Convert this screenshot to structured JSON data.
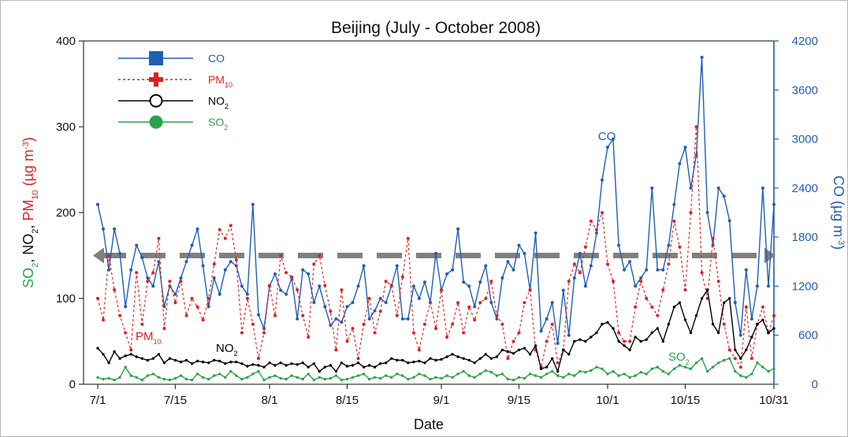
{
  "chart_data": {
    "type": "line",
    "title": "Beijing (July - October 2008)",
    "xlabel": "Date",
    "ylabel_left": [
      "SO",
      "2",
      ", ",
      "NO",
      "2",
      ", ",
      "PM",
      "10",
      " (µg m",
      "-3",
      ")"
    ],
    "ylabel_right": [
      "CO (µg m",
      "-3",
      ")"
    ],
    "x_ticks": [
      "7/1",
      "7/15",
      "8/1",
      "8/15",
      "9/1",
      "9/15",
      "10/1",
      "10/15",
      "10/31"
    ],
    "x_tick_days": [
      1,
      15,
      32,
      46,
      63,
      77,
      93,
      107,
      123
    ],
    "x_range_days": [
      1,
      123
    ],
    "y_left_ticks": [
      "0",
      "100",
      "200",
      "300",
      "400"
    ],
    "y_left_range": [
      0,
      400
    ],
    "y_right_ticks": [
      "0",
      "600",
      "1200",
      "1800",
      "2400",
      "3000",
      "3600",
      "4200"
    ],
    "y_right_range": [
      0,
      4200
    ],
    "reference_line": {
      "axis": "left",
      "value": 150,
      "style": "dashed",
      "color": "#808080"
    },
    "grid": false,
    "legend": {
      "position": "top-left",
      "entries": [
        {
          "label": "CO",
          "sub": "",
          "color": "#1f5fb4",
          "marker": "square",
          "dash": ""
        },
        {
          "label": "PM",
          "sub": "10",
          "color": "#e02020",
          "marker": "plus",
          "dash": "3,3"
        },
        {
          "label": "NO",
          "sub": "2",
          "color": "#000000",
          "marker": "open-circle",
          "dash": ""
        },
        {
          "label": "SO",
          "sub": "2",
          "color": "#2aa34a",
          "marker": "circle",
          "dash": ""
        }
      ]
    },
    "annotations": [
      {
        "text": "CO",
        "sub": "",
        "color": "#1f5fb4"
      },
      {
        "text": "PM",
        "sub": "10",
        "color": "#e02020"
      },
      {
        "text": "NO",
        "sub": "2",
        "color": "#000000"
      },
      {
        "text": "SO",
        "sub": "2",
        "color": "#2aa34a"
      }
    ],
    "series": [
      {
        "name": "CO",
        "axis": "right",
        "color": "#1f5fb4",
        "dash": "",
        "marker_r": 2.0,
        "x": [
          1,
          2,
          3,
          4,
          5,
          6,
          7,
          8,
          9,
          10,
          11,
          12,
          13,
          14,
          15,
          16,
          17,
          18,
          19,
          20,
          21,
          22,
          23,
          24,
          25,
          26,
          27,
          28,
          29,
          30,
          31,
          32,
          33,
          34,
          35,
          36,
          37,
          38,
          39,
          40,
          41,
          42,
          43,
          44,
          45,
          46,
          47,
          48,
          49,
          50,
          51,
          52,
          53,
          54,
          55,
          56,
          57,
          58,
          59,
          60,
          61,
          62,
          63,
          64,
          65,
          66,
          67,
          68,
          69,
          70,
          71,
          72,
          73,
          74,
          75,
          76,
          77,
          78,
          79,
          80,
          81,
          82,
          83,
          84,
          85,
          86,
          87,
          88,
          89,
          90,
          91,
          92,
          93,
          94,
          95,
          96,
          97,
          98,
          99,
          100,
          101,
          102,
          103,
          104,
          105,
          106,
          107,
          108,
          109,
          110,
          111,
          112,
          113,
          114,
          115,
          116,
          117,
          118,
          119,
          120,
          121,
          122,
          123
        ],
        "y": [
          2200,
          1900,
          1400,
          1900,
          1600,
          950,
          1400,
          1700,
          1550,
          1300,
          1200,
          1500,
          950,
          1200,
          1100,
          1300,
          1500,
          1700,
          1900,
          1450,
          950,
          1300,
          1100,
          1400,
          1500,
          1450,
          1200,
          1100,
          2200,
          850,
          680,
          1200,
          1350,
          1150,
          1100,
          1300,
          800,
          1400,
          1350,
          1000,
          1200,
          950,
          720,
          800,
          760,
          950,
          1000,
          1200,
          1450,
          800,
          900,
          1050,
          1000,
          1200,
          1450,
          800,
          800,
          1200,
          1050,
          1250,
          1000,
          1600,
          1150,
          1350,
          1400,
          1900,
          1250,
          1200,
          950,
          1250,
          1450,
          1000,
          800,
          1300,
          1500,
          1400,
          1700,
          1600,
          1150,
          1850,
          650,
          800,
          1000,
          500,
          1150,
          600,
          1300,
          1600,
          1200,
          1450,
          1850,
          2500,
          2900,
          3000,
          1700,
          1400,
          1500,
          1200,
          1300,
          1400,
          2400,
          1400,
          1400,
          1700,
          2200,
          2700,
          2900,
          2400,
          2800,
          4000,
          2100,
          1700,
          2400,
          2300,
          2000,
          1000,
          600,
          1400,
          800,
          1200,
          2400,
          1200,
          2200
        ]
      },
      {
        "name": "PM10",
        "axis": "left",
        "color": "#e02020",
        "dash": "3,3",
        "marker_r": 2.0,
        "x": [
          1,
          2,
          3,
          4,
          5,
          6,
          7,
          8,
          9,
          10,
          11,
          12,
          13,
          14,
          15,
          16,
          17,
          18,
          19,
          20,
          21,
          22,
          23,
          24,
          25,
          26,
          27,
          28,
          29,
          30,
          31,
          32,
          33,
          34,
          35,
          36,
          37,
          38,
          39,
          40,
          41,
          42,
          43,
          44,
          45,
          46,
          47,
          48,
          49,
          50,
          51,
          52,
          53,
          54,
          55,
          56,
          57,
          58,
          59,
          60,
          61,
          62,
          63,
          64,
          65,
          66,
          67,
          68,
          69,
          70,
          71,
          72,
          73,
          74,
          75,
          76,
          77,
          78,
          79,
          80,
          81,
          82,
          83,
          84,
          85,
          86,
          87,
          88,
          89,
          90,
          91,
          92,
          93,
          94,
          95,
          96,
          97,
          98,
          99,
          100,
          101,
          102,
          103,
          104,
          105,
          106,
          107,
          108,
          109,
          110,
          111,
          112,
          113,
          114,
          115,
          116,
          117,
          118,
          119,
          120,
          121,
          122,
          123
        ],
        "y": [
          100,
          75,
          150,
          110,
          80,
          60,
          40,
          130,
          70,
          120,
          130,
          170,
          65,
          120,
          95,
          120,
          80,
          100,
          90,
          75,
          100,
          140,
          180,
          170,
          185,
          145,
          60,
          100,
          70,
          30,
          60,
          115,
          80,
          150,
          130,
          125,
          110,
          80,
          55,
          140,
          150,
          115,
          85,
          40,
          110,
          50,
          65,
          30,
          70,
          100,
          60,
          85,
          120,
          115,
          80,
          125,
          170,
          60,
          40,
          70,
          95,
          65,
          110,
          55,
          70,
          95,
          60,
          90,
          75,
          95,
          100,
          120,
          80,
          70,
          30,
          50,
          60,
          95,
          110,
          40,
          20,
          50,
          70,
          25,
          40,
          120,
          140,
          130,
          160,
          190,
          180,
          200,
          140,
          120,
          60,
          50,
          50,
          90,
          120,
          100,
          90,
          80,
          110,
          140,
          190,
          160,
          110,
          200,
          300,
          130,
          100,
          170,
          120,
          70,
          40,
          30,
          20,
          90,
          30,
          70,
          90,
          60,
          80
        ]
      },
      {
        "name": "NO2",
        "axis": "left",
        "color": "#000000",
        "dash": "",
        "marker_r": 1.7,
        "x": [
          1,
          2,
          3,
          4,
          5,
          6,
          7,
          8,
          9,
          10,
          11,
          12,
          13,
          14,
          15,
          16,
          17,
          18,
          19,
          20,
          21,
          22,
          23,
          24,
          25,
          26,
          27,
          28,
          29,
          30,
          31,
          32,
          33,
          34,
          35,
          36,
          37,
          38,
          39,
          40,
          41,
          42,
          43,
          44,
          45,
          46,
          47,
          48,
          49,
          50,
          51,
          52,
          53,
          54,
          55,
          56,
          57,
          58,
          59,
          60,
          61,
          62,
          63,
          64,
          65,
          66,
          67,
          68,
          69,
          70,
          71,
          72,
          73,
          74,
          75,
          76,
          77,
          78,
          79,
          80,
          81,
          82,
          83,
          84,
          85,
          86,
          87,
          88,
          89,
          90,
          91,
          92,
          93,
          94,
          95,
          96,
          97,
          98,
          99,
          100,
          101,
          102,
          103,
          104,
          105,
          106,
          107,
          108,
          109,
          110,
          111,
          112,
          113,
          114,
          115,
          116,
          117,
          118,
          119,
          120,
          121,
          122,
          123
        ],
        "y": [
          42,
          35,
          25,
          38,
          30,
          33,
          35,
          32,
          30,
          28,
          30,
          35,
          25,
          30,
          28,
          26,
          28,
          24,
          27,
          26,
          25,
          28,
          27,
          24,
          26,
          26,
          24,
          21,
          23,
          22,
          20,
          25,
          22,
          25,
          22,
          24,
          23,
          25,
          20,
          24,
          15,
          20,
          22,
          15,
          25,
          21,
          22,
          25,
          20,
          22,
          20,
          24,
          25,
          30,
          28,
          28,
          25,
          26,
          27,
          25,
          30,
          28,
          29,
          32,
          35,
          32,
          30,
          28,
          25,
          30,
          35,
          30,
          32,
          40,
          38,
          36,
          40,
          42,
          35,
          45,
          18,
          20,
          30,
          15,
          40,
          35,
          50,
          52,
          50,
          55,
          60,
          70,
          72,
          65,
          50,
          45,
          40,
          55,
          50,
          52,
          60,
          65,
          50,
          70,
          90,
          95,
          75,
          60,
          80,
          100,
          110,
          70,
          60,
          95,
          100,
          40,
          30,
          40,
          55,
          70,
          75,
          60,
          65
        ]
      },
      {
        "name": "SO2",
        "axis": "left",
        "color": "#2aa34a",
        "dash": "",
        "marker_r": 1.7,
        "x": [
          1,
          2,
          3,
          4,
          5,
          6,
          7,
          8,
          9,
          10,
          11,
          12,
          13,
          14,
          15,
          16,
          17,
          18,
          19,
          20,
          21,
          22,
          23,
          24,
          25,
          26,
          27,
          28,
          29,
          30,
          31,
          32,
          33,
          34,
          35,
          36,
          37,
          38,
          39,
          40,
          41,
          42,
          43,
          44,
          45,
          46,
          47,
          48,
          49,
          50,
          51,
          52,
          53,
          54,
          55,
          56,
          57,
          58,
          59,
          60,
          61,
          62,
          63,
          64,
          65,
          66,
          67,
          68,
          69,
          70,
          71,
          72,
          73,
          74,
          75,
          76,
          77,
          78,
          79,
          80,
          81,
          82,
          83,
          84,
          85,
          86,
          87,
          88,
          89,
          90,
          91,
          92,
          93,
          94,
          95,
          96,
          97,
          98,
          99,
          100,
          101,
          102,
          103,
          104,
          105,
          106,
          107,
          108,
          109,
          110,
          111,
          112,
          113,
          114,
          115,
          116,
          117,
          118,
          119,
          120,
          121,
          122,
          123
        ],
        "y": [
          8,
          6,
          7,
          5,
          8,
          20,
          10,
          8,
          5,
          10,
          12,
          8,
          6,
          5,
          7,
          10,
          6,
          5,
          12,
          8,
          6,
          10,
          12,
          8,
          15,
          10,
          6,
          8,
          12,
          15,
          5,
          8,
          10,
          7,
          6,
          10,
          8,
          6,
          12,
          5,
          8,
          6,
          7,
          10,
          5,
          6,
          8,
          10,
          12,
          6,
          8,
          7,
          10,
          8,
          12,
          10,
          6,
          8,
          12,
          10,
          6,
          8,
          7,
          10,
          8,
          12,
          15,
          10,
          8,
          12,
          16,
          14,
          10,
          12,
          6,
          5,
          8,
          7,
          12,
          10,
          8,
          12,
          15,
          10,
          8,
          12,
          10,
          15,
          14,
          16,
          20,
          18,
          12,
          15,
          10,
          12,
          8,
          10,
          14,
          12,
          18,
          20,
          15,
          12,
          18,
          22,
          20,
          18,
          25,
          30,
          15,
          20,
          25,
          28,
          30,
          15,
          10,
          8,
          12,
          25,
          20,
          15,
          18
        ]
      }
    ]
  }
}
